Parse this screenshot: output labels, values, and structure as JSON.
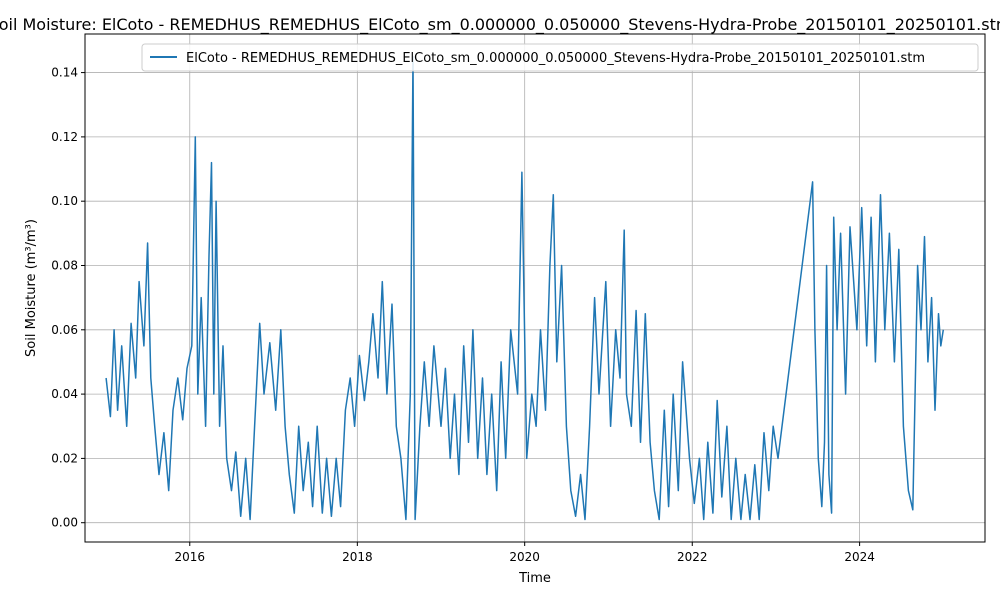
{
  "chart_data": {
    "type": "line",
    "title": "Soil Moisture: ElCoto - REMEDHUS_REMEDHUS_ElCoto_sm_0.000000_0.050000_Stevens-Hydra-Probe_20150101_20250101.stm",
    "xlabel": "Time",
    "ylabel": "Soil Moisture (m³/m³)",
    "xlim": [
      "2014-10-01",
      "2025-07-01"
    ],
    "ylim": [
      -0.006,
      0.152
    ],
    "x_ticks": [
      "2016",
      "2018",
      "2020",
      "2022",
      "2024"
    ],
    "y_ticks": [
      "0.00",
      "0.02",
      "0.04",
      "0.06",
      "0.08",
      "0.10",
      "0.12",
      "0.14"
    ],
    "grid": true,
    "legend_position": "upper right",
    "series": [
      {
        "name": "ElCoto - REMEDHUS_REMEDHUS_ElCoto_sm_0.000000_0.050000_Stevens-Hydra-Probe_20150101_20250101.stm",
        "color": "#1f77b4",
        "points": [
          [
            "2015-01-01",
            0.045
          ],
          [
            "2015-01-20",
            0.033
          ],
          [
            "2015-02-05",
            0.06
          ],
          [
            "2015-02-20",
            0.035
          ],
          [
            "2015-03-10",
            0.055
          ],
          [
            "2015-04-01",
            0.03
          ],
          [
            "2015-04-20",
            0.062
          ],
          [
            "2015-05-10",
            0.045
          ],
          [
            "2015-05-25",
            0.075
          ],
          [
            "2015-06-15",
            0.055
          ],
          [
            "2015-07-01",
            0.087
          ],
          [
            "2015-07-15",
            0.045
          ],
          [
            "2015-08-01",
            0.03
          ],
          [
            "2015-08-20",
            0.015
          ],
          [
            "2015-09-10",
            0.028
          ],
          [
            "2015-10-01",
            0.01
          ],
          [
            "2015-10-20",
            0.035
          ],
          [
            "2015-11-10",
            0.045
          ],
          [
            "2015-12-01",
            0.032
          ],
          [
            "2015-12-20",
            0.048
          ],
          [
            "2016-01-10",
            0.055
          ],
          [
            "2016-01-25",
            0.12
          ],
          [
            "2016-02-05",
            0.04
          ],
          [
            "2016-02-20",
            0.07
          ],
          [
            "2016-03-10",
            0.03
          ],
          [
            "2016-03-25",
            0.083
          ],
          [
            "2016-04-05",
            0.112
          ],
          [
            "2016-04-15",
            0.04
          ],
          [
            "2016-04-25",
            0.1
          ],
          [
            "2016-05-10",
            0.03
          ],
          [
            "2016-05-25",
            0.055
          ],
          [
            "2016-06-10",
            0.02
          ],
          [
            "2016-07-01",
            0.01
          ],
          [
            "2016-07-20",
            0.022
          ],
          [
            "2016-08-10",
            0.002
          ],
          [
            "2016-09-01",
            0.02
          ],
          [
            "2016-09-20",
            0.001
          ],
          [
            "2016-10-10",
            0.03
          ],
          [
            "2016-11-01",
            0.062
          ],
          [
            "2016-11-20",
            0.04
          ],
          [
            "2016-12-15",
            0.056
          ],
          [
            "2017-01-10",
            0.035
          ],
          [
            "2017-02-01",
            0.06
          ],
          [
            "2017-02-20",
            0.03
          ],
          [
            "2017-03-10",
            0.015
          ],
          [
            "2017-04-01",
            0.003
          ],
          [
            "2017-04-20",
            0.03
          ],
          [
            "2017-05-10",
            0.01
          ],
          [
            "2017-06-01",
            0.025
          ],
          [
            "2017-06-20",
            0.005
          ],
          [
            "2017-07-10",
            0.03
          ],
          [
            "2017-08-01",
            0.003
          ],
          [
            "2017-08-20",
            0.02
          ],
          [
            "2017-09-10",
            0.002
          ],
          [
            "2017-10-01",
            0.02
          ],
          [
            "2017-10-20",
            0.005
          ],
          [
            "2017-11-10",
            0.035
          ],
          [
            "2017-12-01",
            0.045
          ],
          [
            "2017-12-20",
            0.03
          ],
          [
            "2018-01-10",
            0.052
          ],
          [
            "2018-02-01",
            0.038
          ],
          [
            "2018-02-20",
            0.05
          ],
          [
            "2018-03-10",
            0.065
          ],
          [
            "2018-04-01",
            0.045
          ],
          [
            "2018-04-20",
            0.075
          ],
          [
            "2018-05-10",
            0.04
          ],
          [
            "2018-06-01",
            0.068
          ],
          [
            "2018-06-20",
            0.03
          ],
          [
            "2018-07-10",
            0.02
          ],
          [
            "2018-08-01",
            0.001
          ],
          [
            "2018-08-20",
            0.04
          ],
          [
            "2018-09-01",
            0.145
          ],
          [
            "2018-09-10",
            0.001
          ],
          [
            "2018-10-01",
            0.03
          ],
          [
            "2018-10-20",
            0.05
          ],
          [
            "2018-11-10",
            0.03
          ],
          [
            "2018-12-01",
            0.055
          ],
          [
            "2019-01-01",
            0.03
          ],
          [
            "2019-01-20",
            0.048
          ],
          [
            "2019-02-10",
            0.02
          ],
          [
            "2019-03-01",
            0.04
          ],
          [
            "2019-03-20",
            0.015
          ],
          [
            "2019-04-10",
            0.055
          ],
          [
            "2019-05-01",
            0.025
          ],
          [
            "2019-05-20",
            0.06
          ],
          [
            "2019-06-10",
            0.02
          ],
          [
            "2019-07-01",
            0.045
          ],
          [
            "2019-07-20",
            0.015
          ],
          [
            "2019-08-10",
            0.04
          ],
          [
            "2019-09-01",
            0.01
          ],
          [
            "2019-09-20",
            0.05
          ],
          [
            "2019-10-10",
            0.02
          ],
          [
            "2019-11-01",
            0.06
          ],
          [
            "2019-12-01",
            0.04
          ],
          [
            "2019-12-20",
            0.109
          ],
          [
            "2020-01-10",
            0.02
          ],
          [
            "2020-02-01",
            0.04
          ],
          [
            "2020-02-20",
            0.03
          ],
          [
            "2020-03-10",
            0.06
          ],
          [
            "2020-04-01",
            0.035
          ],
          [
            "2020-04-20",
            0.08
          ],
          [
            "2020-05-05",
            0.102
          ],
          [
            "2020-05-20",
            0.05
          ],
          [
            "2020-06-10",
            0.08
          ],
          [
            "2020-07-01",
            0.03
          ],
          [
            "2020-07-20",
            0.01
          ],
          [
            "2020-08-10",
            0.002
          ],
          [
            "2020-09-01",
            0.015
          ],
          [
            "2020-09-20",
            0.001
          ],
          [
            "2020-10-10",
            0.03
          ],
          [
            "2020-11-01",
            0.07
          ],
          [
            "2020-11-20",
            0.04
          ],
          [
            "2020-12-20",
            0.075
          ],
          [
            "2021-01-10",
            0.03
          ],
          [
            "2021-02-01",
            0.06
          ],
          [
            "2021-02-20",
            0.045
          ],
          [
            "2021-03-10",
            0.091
          ],
          [
            "2021-03-20",
            0.04
          ],
          [
            "2021-04-10",
            0.03
          ],
          [
            "2021-05-01",
            0.066
          ],
          [
            "2021-05-20",
            0.025
          ],
          [
            "2021-06-10",
            0.065
          ],
          [
            "2021-07-01",
            0.025
          ],
          [
            "2021-07-20",
            0.01
          ],
          [
            "2021-08-10",
            0.001
          ],
          [
            "2021-09-01",
            0.035
          ],
          [
            "2021-09-20",
            0.005
          ],
          [
            "2021-10-10",
            0.04
          ],
          [
            "2021-11-01",
            0.01
          ],
          [
            "2021-11-20",
            0.05
          ],
          [
            "2021-12-20",
            0.02
          ],
          [
            "2022-01-10",
            0.006
          ],
          [
            "2022-02-01",
            0.02
          ],
          [
            "2022-02-20",
            0.001
          ],
          [
            "2022-03-10",
            0.025
          ],
          [
            "2022-04-01",
            0.003
          ],
          [
            "2022-04-20",
            0.038
          ],
          [
            "2022-05-10",
            0.008
          ],
          [
            "2022-06-01",
            0.03
          ],
          [
            "2022-06-20",
            0.001
          ],
          [
            "2022-07-10",
            0.02
          ],
          [
            "2022-08-01",
            0.001
          ],
          [
            "2022-08-20",
            0.015
          ],
          [
            "2022-09-10",
            0.001
          ],
          [
            "2022-10-01",
            0.018
          ],
          [
            "2022-10-20",
            0.001
          ],
          [
            "2022-11-10",
            0.028
          ],
          [
            "2022-12-01",
            0.01
          ],
          [
            "2022-12-20",
            0.03
          ],
          [
            "2023-01-10",
            0.02
          ],
          [
            "2023-06-10",
            0.106
          ],
          [
            "2023-06-20",
            0.06
          ],
          [
            "2023-07-05",
            0.02
          ],
          [
            "2023-07-20",
            0.005
          ],
          [
            "2023-08-01",
            0.025
          ],
          [
            "2023-08-10",
            0.08
          ],
          [
            "2023-08-20",
            0.015
          ],
          [
            "2023-09-01",
            0.003
          ],
          [
            "2023-09-10",
            0.095
          ],
          [
            "2023-09-25",
            0.06
          ],
          [
            "2023-10-10",
            0.09
          ],
          [
            "2023-11-01",
            0.04
          ],
          [
            "2023-11-20",
            0.092
          ],
          [
            "2023-12-20",
            0.06
          ],
          [
            "2024-01-10",
            0.098
          ],
          [
            "2024-02-01",
            0.055
          ],
          [
            "2024-02-20",
            0.095
          ],
          [
            "2024-03-10",
            0.05
          ],
          [
            "2024-04-01",
            0.102
          ],
          [
            "2024-04-20",
            0.06
          ],
          [
            "2024-05-10",
            0.09
          ],
          [
            "2024-06-01",
            0.05
          ],
          [
            "2024-06-20",
            0.085
          ],
          [
            "2024-07-10",
            0.03
          ],
          [
            "2024-08-01",
            0.01
          ],
          [
            "2024-08-20",
            0.004
          ],
          [
            "2024-09-10",
            0.08
          ],
          [
            "2024-09-25",
            0.06
          ],
          [
            "2024-10-10",
            0.089
          ],
          [
            "2024-10-25",
            0.05
          ],
          [
            "2024-11-10",
            0.07
          ],
          [
            "2024-11-25",
            0.035
          ],
          [
            "2024-12-10",
            0.065
          ],
          [
            "2024-12-20",
            0.055
          ],
          [
            "2024-12-31",
            0.06
          ]
        ]
      }
    ]
  }
}
